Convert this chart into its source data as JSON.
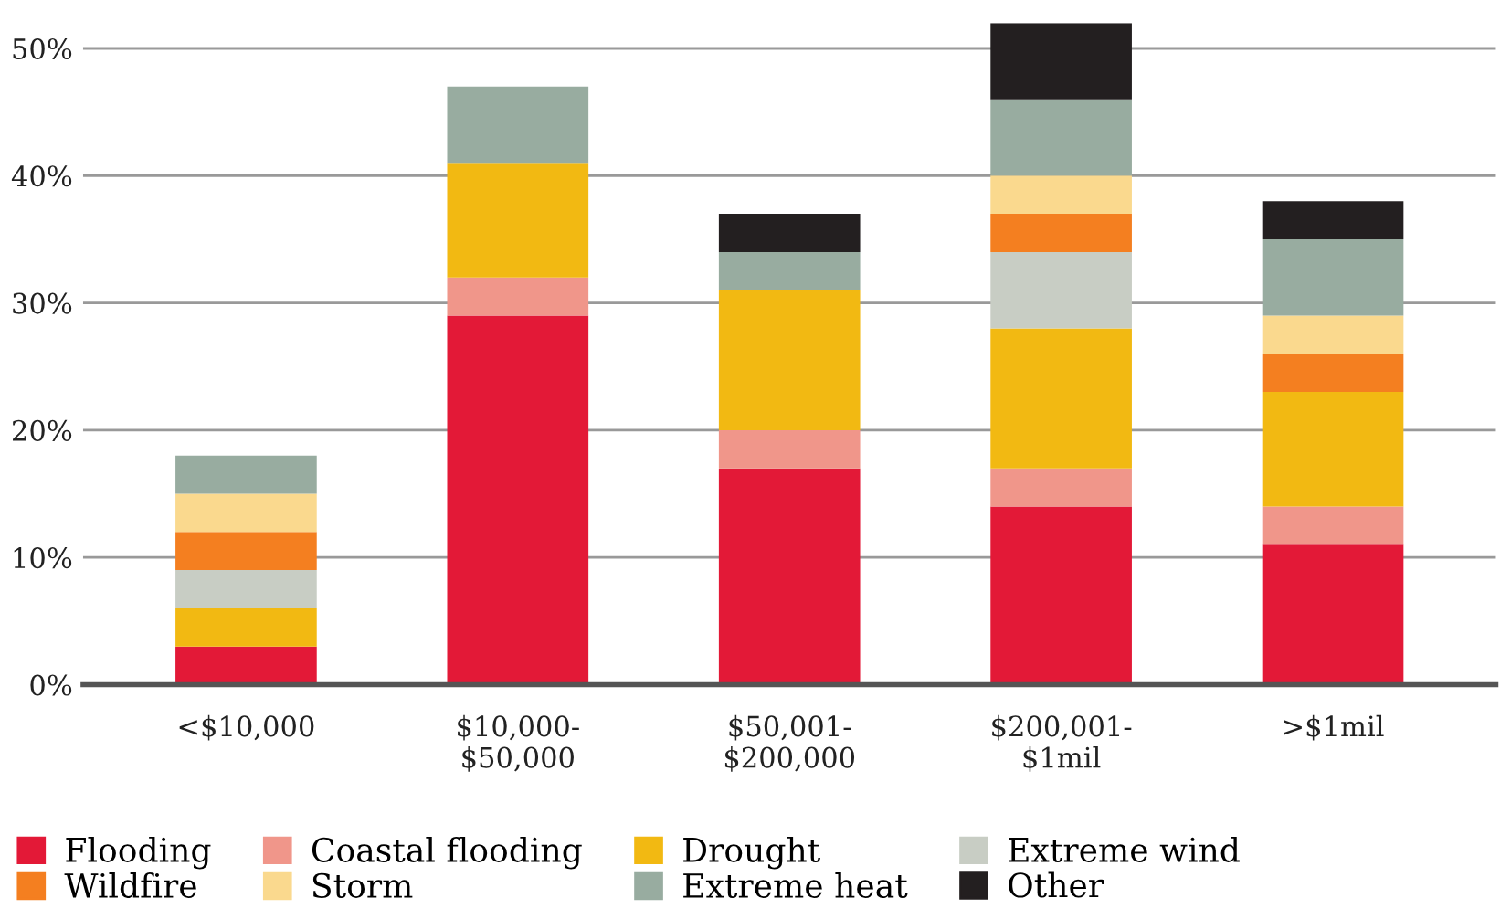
{
  "chart_data": {
    "type": "bar",
    "stacked": true,
    "categories": [
      "<$10,000",
      "$10,000-\n$50,000",
      "$50,001-\n$200,000",
      "$200,001-\n$1mil",
      ">$1mil"
    ],
    "series": [
      {
        "name": "Flooding",
        "color": "#e31937",
        "values": [
          3,
          29,
          17,
          14,
          11
        ]
      },
      {
        "name": "Coastal flooding",
        "color": "#f0968a",
        "values": [
          0,
          3,
          3,
          3,
          3
        ]
      },
      {
        "name": "Drought",
        "color": "#f2b912",
        "values": [
          3,
          9,
          11,
          11,
          9
        ]
      },
      {
        "name": "Extreme wind",
        "color": "#c8cdc4",
        "values": [
          3,
          0,
          0,
          6,
          0
        ]
      },
      {
        "name": "Wildfire",
        "color": "#f47f20",
        "values": [
          3,
          0,
          0,
          3,
          3
        ]
      },
      {
        "name": "Storm",
        "color": "#fad98e",
        "values": [
          3,
          0,
          0,
          3,
          3
        ]
      },
      {
        "name": "Extreme heat",
        "color": "#98aca0",
        "values": [
          3,
          6,
          3,
          6,
          6
        ]
      },
      {
        "name": "Other",
        "color": "#231f20",
        "values": [
          0,
          0,
          3,
          6,
          3
        ]
      }
    ],
    "ylim": [
      0,
      52
    ],
    "yticks": [
      {
        "value": 0,
        "label": "0%"
      },
      {
        "value": 10,
        "label": "10%"
      },
      {
        "value": 20,
        "label": "20%"
      },
      {
        "value": 30,
        "label": "30%"
      },
      {
        "value": 40,
        "label": "40%"
      },
      {
        "value": 50,
        "label": "50%"
      }
    ],
    "grid": "y",
    "legend": "bottom"
  }
}
